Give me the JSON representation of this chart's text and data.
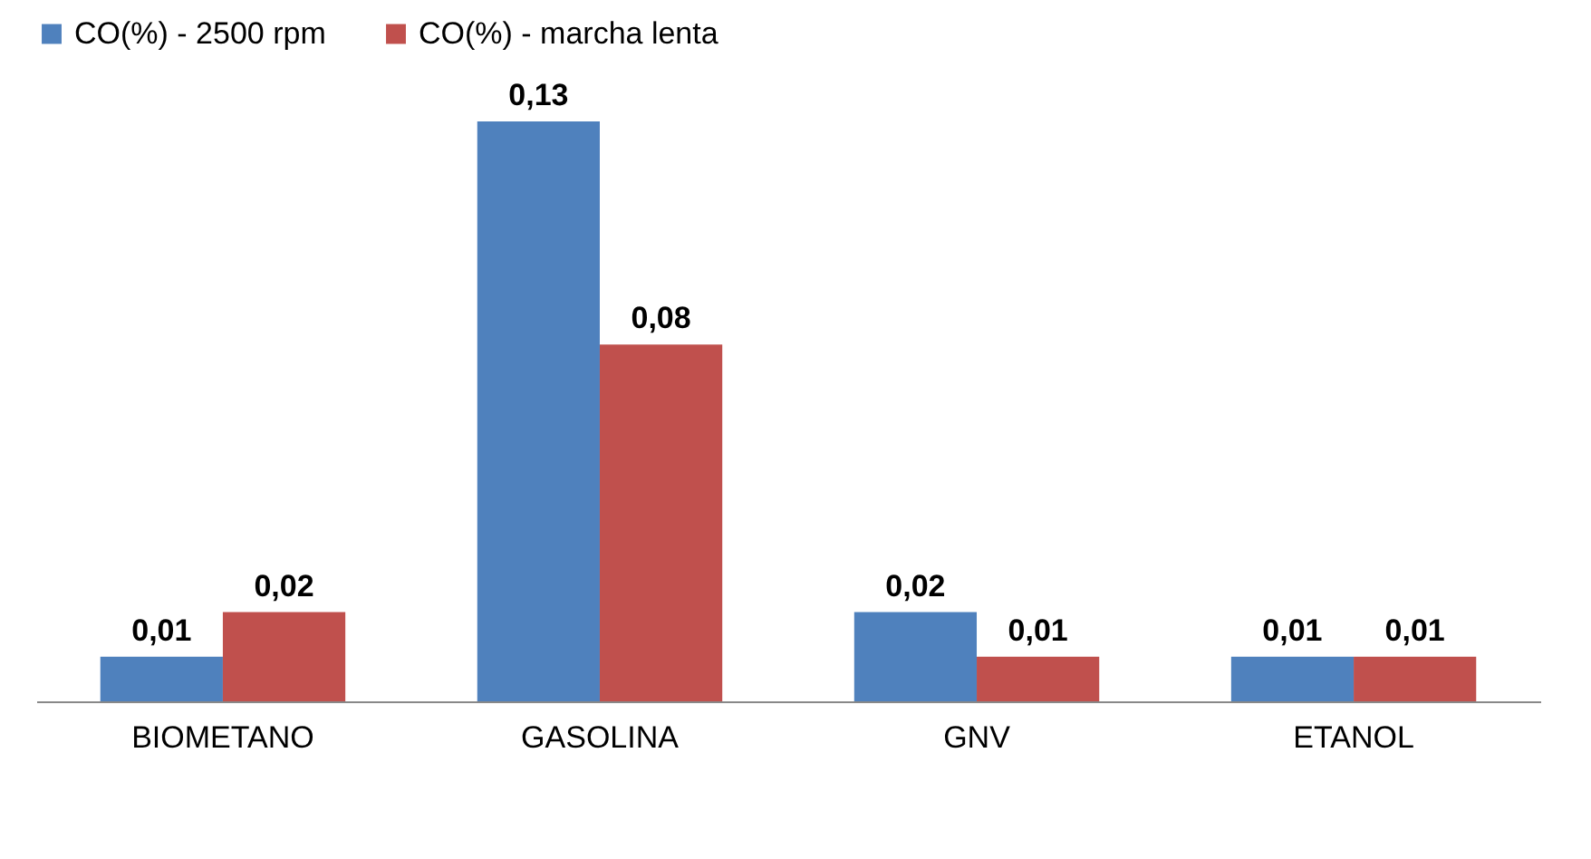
{
  "chart_data": {
    "type": "bar",
    "categories": [
      "BIOMETANO",
      "GASOLINA",
      "GNV",
      "ETANOL"
    ],
    "series": [
      {
        "name": "CO(%) - 2500 rpm",
        "color": "#4f81bd",
        "values": [
          0.01,
          0.13,
          0.02,
          0.01
        ],
        "value_labels": [
          "0,01",
          "0,13",
          "0,02",
          "0,01"
        ]
      },
      {
        "name": "CO(%) - marcha lenta",
        "color": "#c0504d",
        "values": [
          0.02,
          0.08,
          0.01,
          0.01
        ],
        "value_labels": [
          "0,02",
          "0,08",
          "0,01",
          "0,01"
        ]
      }
    ],
    "legend": "top",
    "grid": false
  }
}
